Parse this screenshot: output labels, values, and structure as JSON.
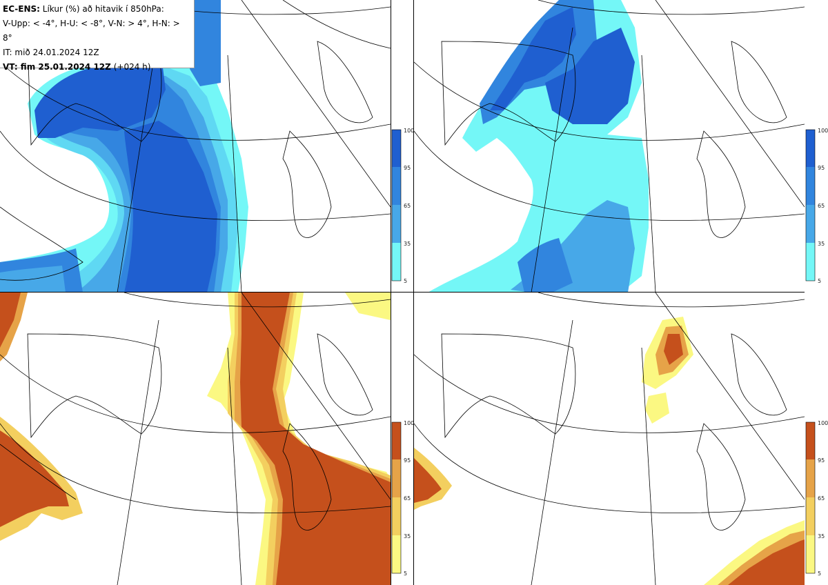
{
  "header": {
    "product": "EC-ENS:",
    "title_rest": "Líkur (%) að hitavik í 850hPa:",
    "legend_line": "V-Upp: < -4°, H-U: < -8°, V-N: > 4°, H-N: > 8°",
    "init_time": "IT: mið 24.01.2024 12Z",
    "valid_label": "VT: fim 25.01.2024 12Z",
    "lead": "(+024 h)"
  },
  "colors": {
    "cold_scale": [
      "#74f7f7",
      "#5fd8f3",
      "#47a8e8",
      "#3185de",
      "#1f5fd0"
    ],
    "warm_scale": [
      "#fbf882",
      "#f3cf5f",
      "#e6a348",
      "#d47d2f",
      "#c5501c"
    ]
  },
  "colorbar_ticks": [
    "100",
    "95",
    "65",
    "35",
    "5"
  ],
  "panels": [
    {
      "id": "V-Upp",
      "scale": "cold"
    },
    {
      "id": "H-U",
      "scale": "cold"
    },
    {
      "id": "V-N",
      "scale": "warm"
    },
    {
      "id": "H-N",
      "scale": "warm"
    }
  ]
}
